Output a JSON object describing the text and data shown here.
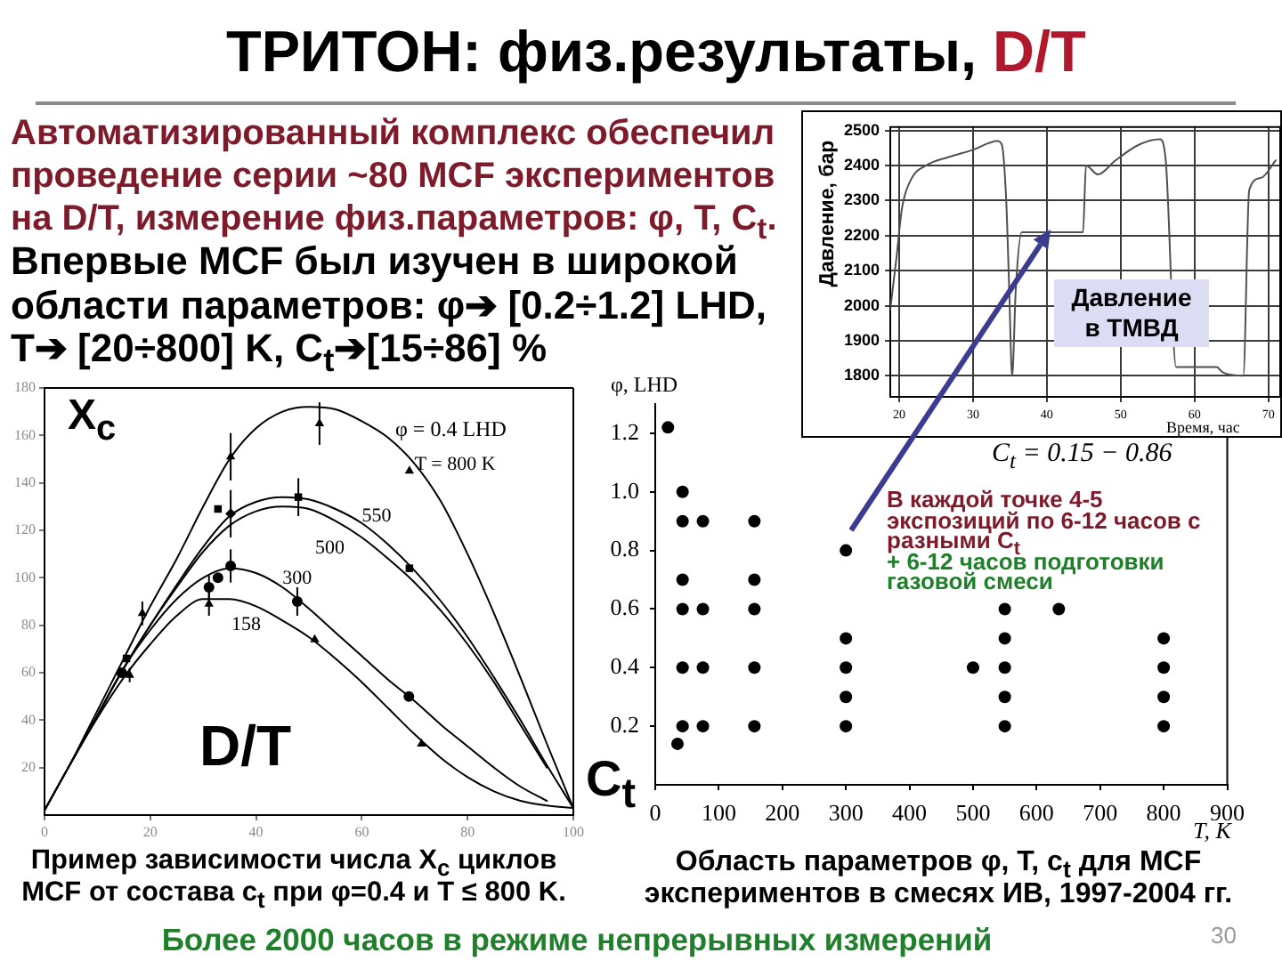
{
  "chart_data": [
    {
      "type": "other",
      "title": "ТРИТОН: физ.результаты, D/T",
      "annotations": [
        "Автоматизированный комплекс обеспечил проведение серии ~80 MCF экспериментов на D/T, измерение физ.параметров: φ, T, C$_{t}$.",
        "Впервые MCF был изучен в широкой области параметров: φ➔ [0.2÷1.2] LHD, T➔ [20÷800] K, C$_{t}$➔[15÷86] %",
        "Более 2000 часов в режиме непрерывных измерений",
        "30"
      ]
    },
    {
      "type": "line",
      "xlabel": "Время, час",
      "ylabel": "Давление, бар",
      "x": [
        18.8,
        19.6,
        20.4,
        21.6,
        23.6,
        26.8,
        30.0,
        33.3,
        33.9,
        34.5,
        34.9,
        35.3,
        35.8,
        36.6,
        40.5,
        44.9,
        45.3,
        46.9,
        49.3,
        52.5,
        55.3,
        56.1,
        57.5,
        63.0,
        63.8,
        66.6,
        67.4,
        69.0,
        71.0
      ],
      "values": [
        1990,
        2130,
        2280,
        2360,
        2400,
        2425,
        2445,
        2470,
        2460,
        2300,
        2050,
        1800,
        2050,
        2210,
        2210,
        2210,
        2400,
        2375,
        2415,
        2460,
        2475,
        2415,
        1825,
        1825,
        1810,
        1800,
        2330,
        2365,
        2415
      ],
      "color": "#505050",
      "xlim": [
        18.8,
        71.6
      ],
      "ylim": [
        1740,
        2510
      ],
      "xticks": [
        20,
        30,
        40,
        50,
        60,
        70
      ],
      "yticks": [
        1800,
        1900,
        2000,
        2100,
        2200,
        2300,
        2400,
        2500
      ],
      "grid": true,
      "annotations": [
        "Давление в ТМВД"
      ]
    },
    {
      "type": "line",
      "xlabel": "C$_{t}$",
      "ylabel": "X$_{c}$",
      "xlim": [
        0,
        100
      ],
      "ylim": [
        0,
        180
      ],
      "xticks": [
        0,
        20,
        40,
        60,
        80,
        100
      ],
      "yticks": [
        20,
        40,
        60,
        80,
        100,
        120,
        140,
        160,
        180
      ],
      "x": [
        0,
        5,
        10,
        15,
        20,
        25,
        30,
        35,
        40,
        45,
        50,
        55,
        60,
        65,
        70,
        75,
        80,
        85,
        90,
        95,
        100
      ],
      "series": [
        {
          "color": "#000000",
          "values": [
            null,
            22,
            44,
            66,
            88,
            108,
            130,
            150,
            163,
            170,
            172,
            171,
            166,
            159,
            148,
            132,
            110,
            85,
            58,
            30,
            3
          ]
        },
        {
          "color": "#000000",
          "values": [
            null,
            null,
            42,
            62,
            80,
            97,
            113,
            126,
            132,
            134,
            133,
            129,
            123,
            114,
            103,
            90,
            75,
            58,
            40,
            21,
            3
          ]
        },
        {
          "color": "#000000",
          "values": [
            2,
            22,
            42,
            62,
            80,
            96,
            111,
            122,
            128,
            130,
            129,
            124,
            117,
            108,
            98,
            86,
            72,
            56,
            38,
            20,
            null
          ]
        },
        {
          "color": "#000000",
          "values": [
            2,
            22,
            42,
            62,
            78,
            91,
            100,
            104,
            102,
            96,
            87,
            77,
            67,
            57,
            48,
            38,
            29,
            20,
            12,
            6,
            null
          ]
        },
        {
          "color": "#000000",
          "values": [
            2,
            22,
            41,
            58,
            72,
            84,
            91,
            91,
            88,
            82,
            75,
            66,
            56,
            45,
            34,
            24,
            16,
            10,
            6,
            4,
            3
          ]
        },
        {
          "type": "scatter",
          "marker": "triangle",
          "color": "#000000",
          "x": [
            18.5,
            35.2,
            52,
            69
          ],
          "values": [
            85,
            151,
            165,
            145
          ],
          "errors": [
            5,
            10,
            9,
            null
          ]
        },
        {
          "type": "scatter",
          "marker": "square",
          "color": "#000000",
          "x": [
            15.5,
            32.8,
            48,
            69
          ],
          "values": [
            66,
            129,
            134,
            104
          ],
          "errors": [
            null,
            null,
            8,
            null
          ]
        },
        {
          "type": "scatter",
          "marker": "diamond",
          "color": "#000000",
          "x": [
            35.2
          ],
          "values": [
            127
          ],
          "errors": [
            10
          ]
        },
        {
          "type": "scatter",
          "marker": "circle",
          "color": "#000000",
          "x": [
            14.6,
            31.1,
            32.8,
            35.2,
            47.8,
            68.9
          ],
          "values": [
            60,
            96,
            100,
            105,
            90,
            50
          ],
          "errors": [
            null,
            5,
            null,
            7,
            6,
            null
          ]
        },
        {
          "type": "scatter",
          "marker": "triangle",
          "color": "#000000",
          "x": [
            16.1,
            31.1,
            51.1,
            71.3
          ],
          "values": [
            59,
            89,
            74,
            30
          ],
          "errors": [
            3,
            5,
            null,
            null
          ]
        }
      ],
      "annotations": [
        "φ = 0.4 LHD",
        {
          "text": "T = 800 K",
          "x": 70,
          "y": 148
        },
        {
          "text": "550",
          "x": 60,
          "y": 126
        },
        "500",
        {
          "text": "300",
          "x": 45,
          "y": 100
        },
        "158",
        "D/T",
        "Пример зависимости числа X$_{c}$ циклов MCF от состава c$_{t}$ при φ=0.4 и T ≤ 800 K."
      ]
    },
    {
      "type": "scatter",
      "xlabel": "T, K",
      "ylabel": "φ, LHD",
      "marker": "circle",
      "color": "#000000",
      "x": [
        20,
        35,
        43,
        43,
        43,
        43,
        43,
        43,
        75,
        75,
        75,
        75,
        156,
        156,
        156,
        156,
        156,
        300,
        300,
        300,
        300,
        300,
        500,
        550,
        550,
        550,
        550,
        550,
        635,
        800,
        800,
        800,
        800
      ],
      "values": [
        1.22,
        0.14,
        1.0,
        0.9,
        0.7,
        0.6,
        0.4,
        0.2,
        0.9,
        0.6,
        0.4,
        0.2,
        0.9,
        0.7,
        0.6,
        0.4,
        0.2,
        0.8,
        0.5,
        0.4,
        0.3,
        0.2,
        0.4,
        0.6,
        0.5,
        0.4,
        0.3,
        0.2,
        0.6,
        0.5,
        0.4,
        0.3,
        0.2
      ],
      "xlim": [
        0,
        900
      ],
      "ylim": [
        0,
        1.3
      ],
      "xticks": [
        0,
        100,
        200,
        300,
        400,
        500,
        600,
        700,
        800,
        900
      ],
      "yticks": [
        0.2,
        0.4,
        0.6,
        0.8,
        {
          "value": 1,
          "label": "1.0"
        },
        1.2
      ],
      "annotations": [
        "C$_{t}$ = 0.15 − 0.86",
        "В каждой точке 4-5 экспозиций по 6-12 часов с разными C$_{t}$",
        "+ 6-12 часов подготовки газовой смеси",
        "Область параметров φ, T, c$_{t}$ для MCF экспериментов в смесях ИВ, 1997-2004 гг."
      ]
    }
  ]
}
